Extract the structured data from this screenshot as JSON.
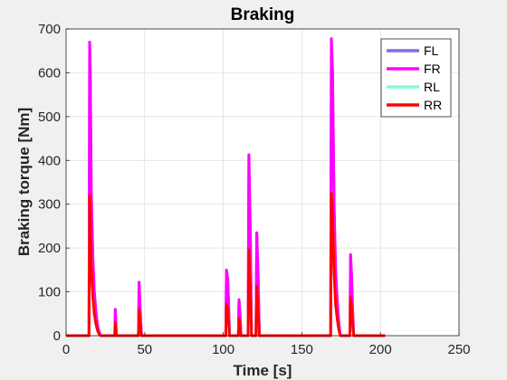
{
  "chart_data": {
    "type": "line",
    "title": "Braking",
    "xlabel": "Time [s]",
    "ylabel": "Braking torque [Nm]",
    "xlim": [
      0,
      250
    ],
    "ylim": [
      0,
      700
    ],
    "xticks": [
      0,
      50,
      100,
      150,
      200,
      250
    ],
    "yticks": [
      0,
      100,
      200,
      300,
      400,
      500,
      600,
      700
    ],
    "grid": true,
    "legend_position": "top-right",
    "series": [
      {
        "name": "FL",
        "color": "#7f6ee6",
        "x": [
          0,
          14.6,
          15,
          15.4,
          16,
          17,
          18,
          19,
          20,
          21,
          22,
          31,
          31.3,
          32,
          46,
          46.4,
          47,
          48,
          101.6,
          102,
          102.8,
          103.5,
          104,
          109.6,
          110,
          110.8,
          111.3,
          115.8,
          116.3,
          117.3,
          118,
          120.8,
          121.3,
          122.3,
          123,
          168.3,
          168.8,
          169.5,
          170.5,
          171.5,
          172.5,
          173.5,
          174.5,
          180.6,
          181,
          181.6,
          182.3,
          183,
          203
        ],
        "y": [
          0,
          0,
          670,
          610,
          330,
          180,
          100,
          55,
          25,
          8,
          0,
          0,
          60,
          0,
          0,
          122,
          70,
          0,
          0,
          150,
          130,
          60,
          0,
          0,
          82,
          45,
          0,
          0,
          413,
          220,
          0,
          0,
          235,
          120,
          0,
          0,
          678,
          600,
          300,
          150,
          80,
          30,
          0,
          0,
          185,
          140,
          60,
          0,
          0
        ]
      },
      {
        "name": "FR",
        "color": "#ff00ff",
        "x": [
          0,
          14.6,
          15,
          15.4,
          16,
          17,
          18,
          19,
          20,
          21,
          22,
          31,
          31.3,
          32,
          46,
          46.4,
          47,
          48,
          101.6,
          102,
          102.8,
          103.5,
          104,
          109.6,
          110,
          110.8,
          111.3,
          115.8,
          116.3,
          117.3,
          118,
          120.8,
          121.3,
          122.3,
          123,
          168.3,
          168.8,
          169.5,
          170.5,
          171.5,
          172.5,
          173.5,
          174.5,
          180.6,
          181,
          181.6,
          182.3,
          183,
          203
        ],
        "y": [
          0,
          0,
          670,
          610,
          330,
          180,
          100,
          55,
          25,
          8,
          0,
          0,
          60,
          0,
          0,
          122,
          70,
          0,
          0,
          150,
          130,
          60,
          0,
          0,
          82,
          45,
          0,
          0,
          413,
          220,
          0,
          0,
          235,
          120,
          0,
          0,
          678,
          600,
          300,
          150,
          80,
          30,
          0,
          0,
          185,
          140,
          60,
          0,
          0
        ]
      },
      {
        "name": "RL",
        "color": "#7fffd4",
        "x": [
          0,
          14.6,
          15,
          15.4,
          16,
          17,
          18,
          19,
          20,
          21,
          22,
          31,
          31.3,
          32,
          46,
          46.4,
          47,
          48,
          101.6,
          102,
          102.8,
          103.5,
          104,
          109.6,
          110,
          110.8,
          111.3,
          115.8,
          116.3,
          117.3,
          118,
          120.8,
          121.3,
          122.3,
          123,
          168.3,
          168.8,
          169.5,
          170.5,
          171.5,
          172.5,
          173.5,
          174.5,
          180.6,
          181,
          181.6,
          182.3,
          183,
          203
        ],
        "y": [
          0,
          0,
          320,
          290,
          160,
          90,
          50,
          27,
          12,
          4,
          0,
          0,
          30,
          0,
          0,
          60,
          34,
          0,
          0,
          72,
          62,
          28,
          0,
          0,
          40,
          22,
          0,
          0,
          197,
          105,
          0,
          0,
          113,
          58,
          0,
          0,
          325,
          290,
          145,
          72,
          38,
          14,
          0,
          0,
          88,
          67,
          29,
          0,
          0
        ]
      },
      {
        "name": "RR",
        "color": "#ff0000",
        "x": [
          0,
          14.6,
          15,
          15.4,
          16,
          17,
          18,
          19,
          20,
          21,
          22,
          31,
          31.3,
          32,
          46,
          46.4,
          47,
          48,
          101.6,
          102,
          102.8,
          103.5,
          104,
          109.6,
          110,
          110.8,
          111.3,
          115.8,
          116.3,
          117.3,
          118,
          120.8,
          121.3,
          122.3,
          123,
          168.3,
          168.8,
          169.5,
          170.5,
          171.5,
          172.5,
          173.5,
          174.5,
          180.6,
          181,
          181.6,
          182.3,
          183,
          203
        ],
        "y": [
          0,
          0,
          320,
          290,
          160,
          90,
          50,
          27,
          12,
          4,
          0,
          0,
          30,
          0,
          0,
          60,
          34,
          0,
          0,
          72,
          62,
          28,
          0,
          0,
          40,
          22,
          0,
          0,
          197,
          105,
          0,
          0,
          113,
          58,
          0,
          0,
          325,
          290,
          145,
          72,
          38,
          14,
          0,
          0,
          88,
          67,
          29,
          0,
          0
        ]
      }
    ]
  }
}
